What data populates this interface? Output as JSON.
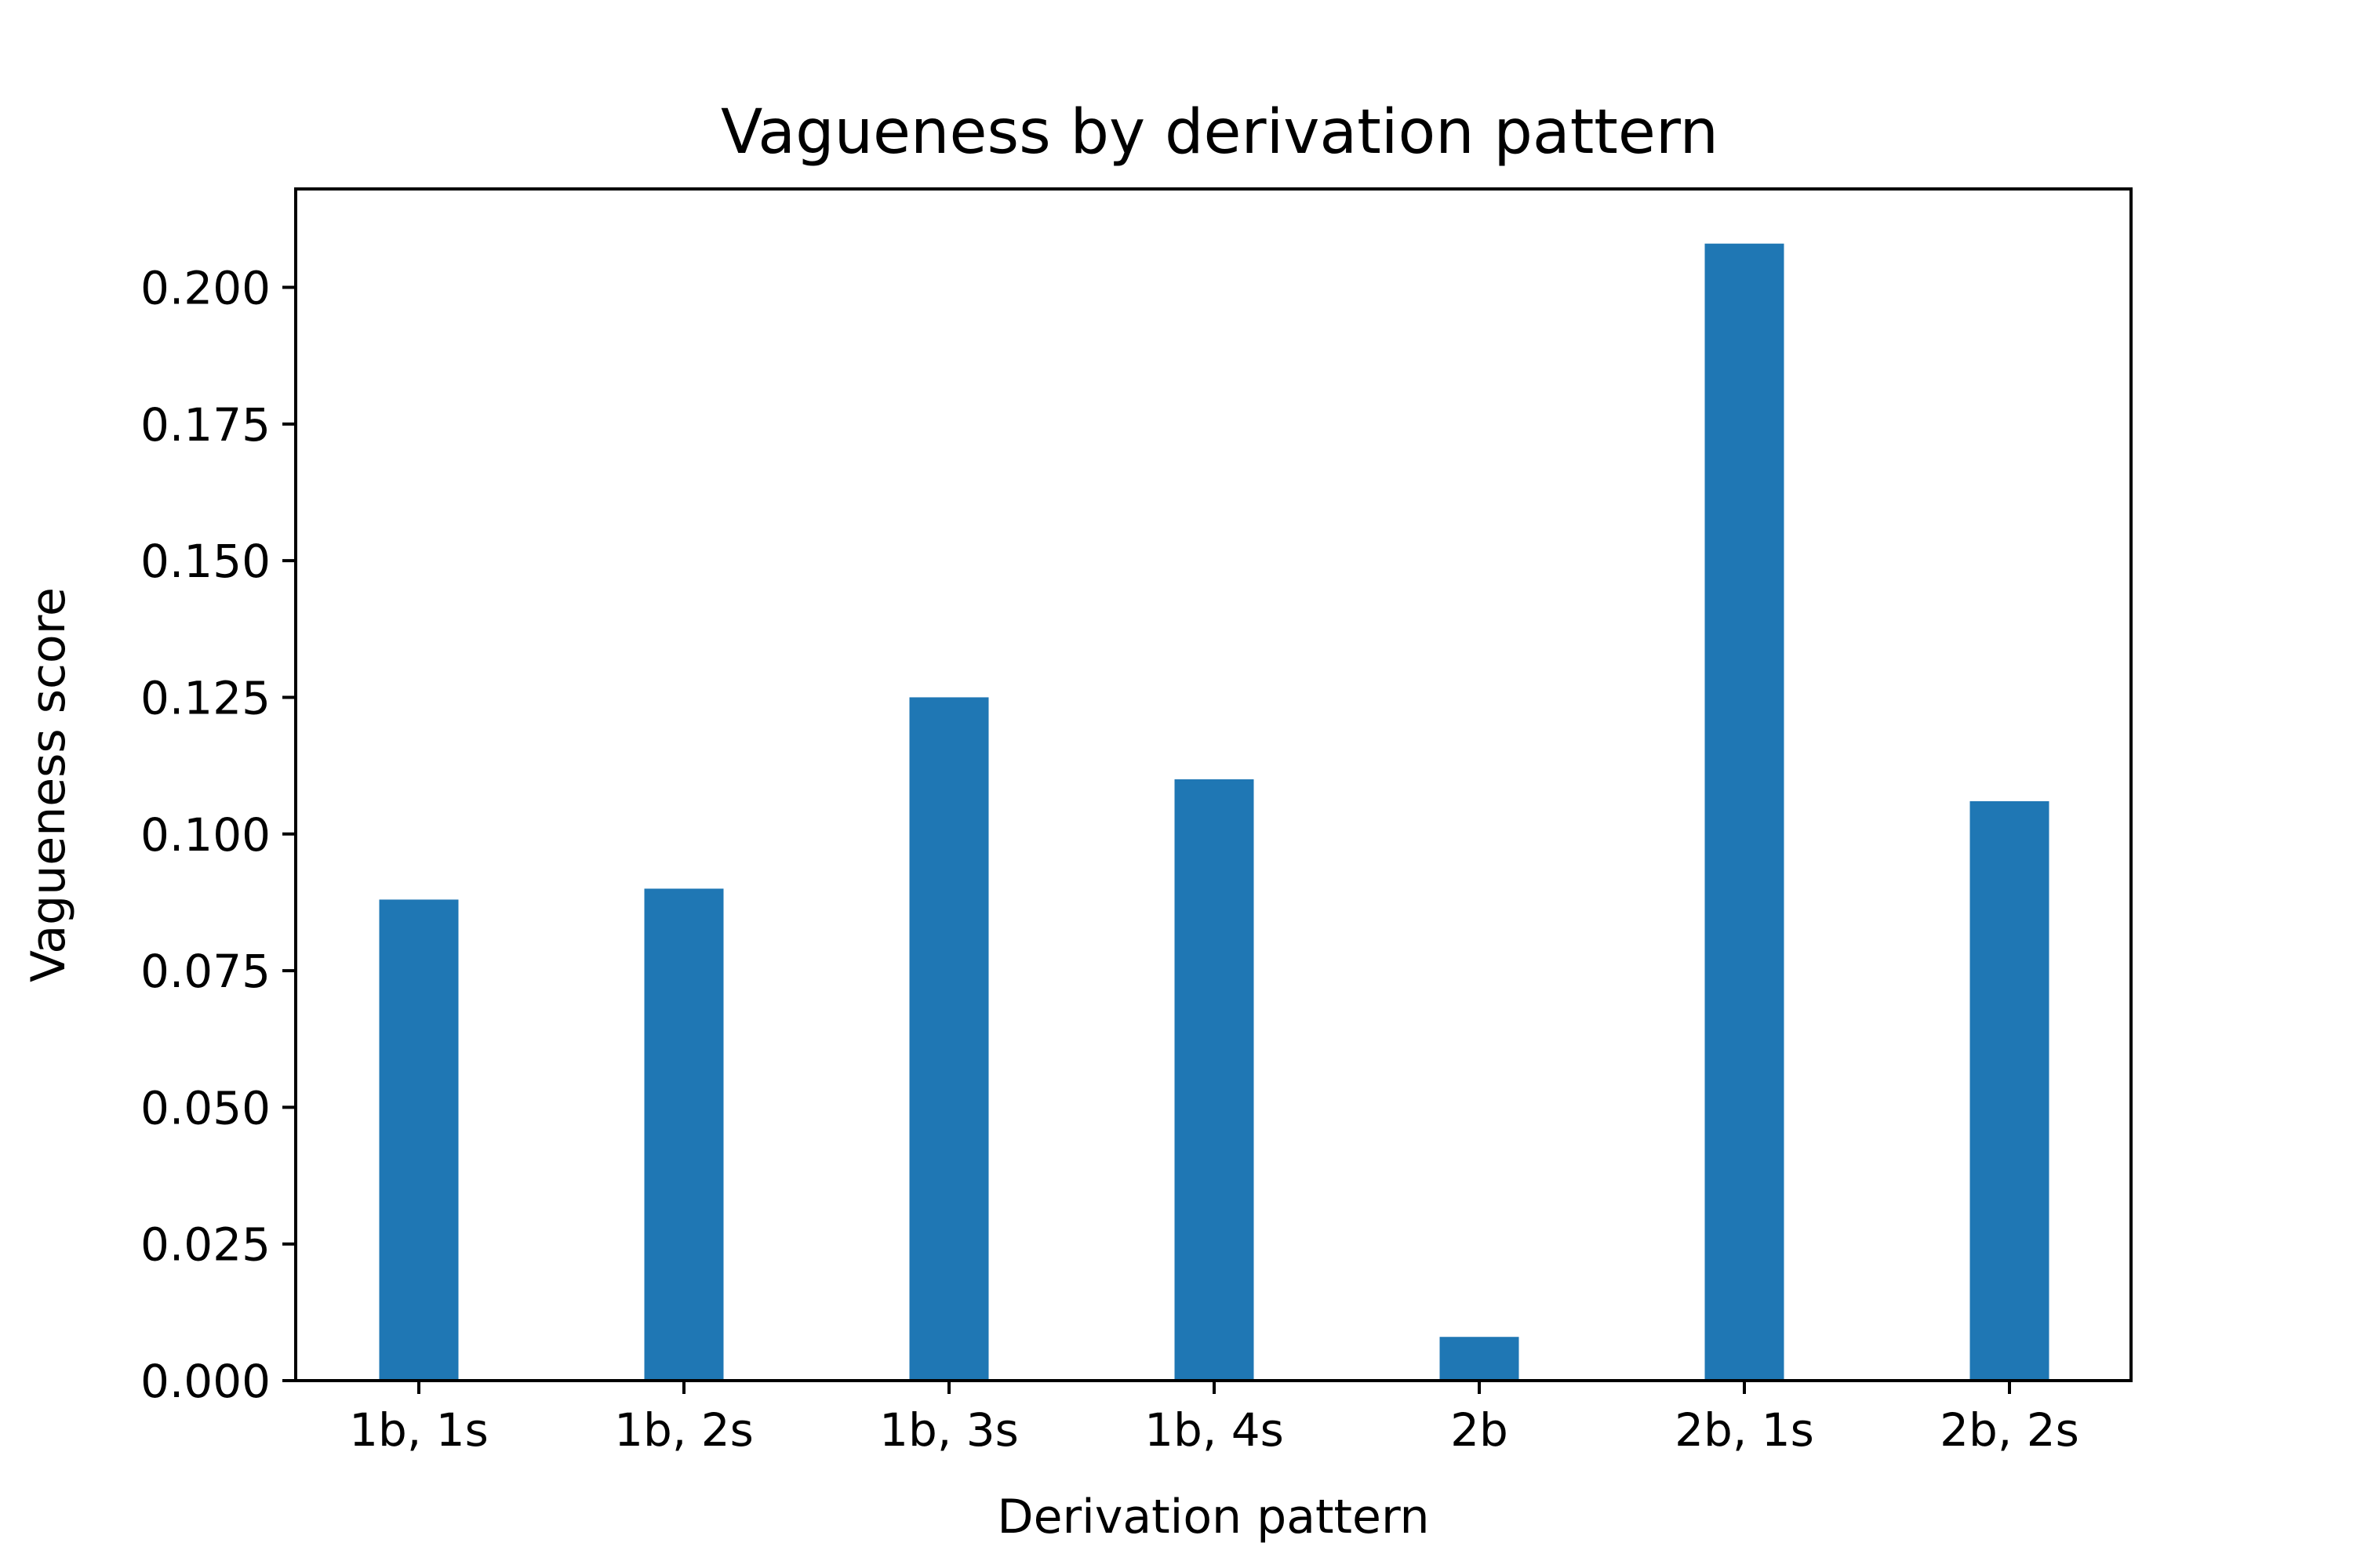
{
  "chart_data": {
    "type": "bar",
    "title": "Vagueness by derivation pattern",
    "xlabel": "Derivation pattern",
    "ylabel": "Vagueness score",
    "categories": [
      "1b, 1s",
      "1b, 2s",
      "1b, 3s",
      "1b, 4s",
      "2b",
      "2b, 1s",
      "2b, 2s"
    ],
    "values": [
      0.088,
      0.09,
      0.125,
      0.11,
      0.008,
      0.208,
      0.106
    ],
    "ylim": [
      0,
      0.218
    ],
    "yticks": [
      0.0,
      0.025,
      0.05,
      0.075,
      0.1,
      0.125,
      0.15,
      0.175,
      0.2
    ],
    "ytick_labels": [
      "0.000",
      "0.025",
      "0.050",
      "0.075",
      "0.100",
      "0.125",
      "0.150",
      "0.175",
      "0.200"
    ],
    "bar_color": "#1f77b4",
    "grid": false,
    "legend": false
  }
}
